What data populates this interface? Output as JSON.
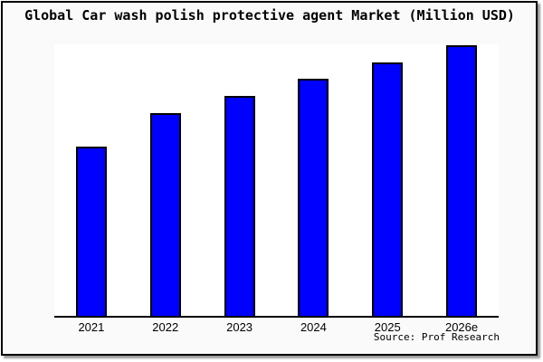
{
  "chart_data": {
    "type": "bar",
    "title": "Global Car wash polish protective agent Market (Million USD)",
    "categories": [
      "2021",
      "2022",
      "2023",
      "2024",
      "2025",
      "2026e"
    ],
    "values": [
      62.4,
      75.1,
      81.4,
      87.6,
      93.6,
      100.0
    ],
    "value_basis": "relative index estimated from bar heights, 2026e = 100; chart displays no y-axis, gridlines or data labels",
    "xlabel": "",
    "ylabel": "",
    "ylim": [
      0,
      100.5
    ],
    "grid": false,
    "legend": false,
    "bar_color": "#0000ff",
    "bar_edge_color": "#000000",
    "source": "Source: Prof Research"
  },
  "colors": {
    "frame_background": "#fafafa",
    "plot_background": "#ffffff",
    "frame_border": "#000000",
    "axis_line": "#000000",
    "title_text": "#000000",
    "shadow": "#666666"
  }
}
